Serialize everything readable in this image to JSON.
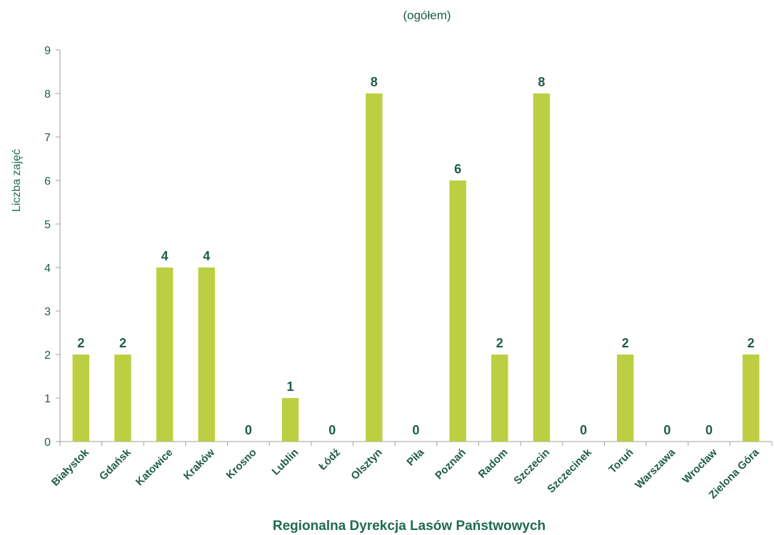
{
  "chart_data": {
    "type": "bar",
    "subtitle": "(ogółem)",
    "xlabel": "Regionalna Dyrekcja Lasów Państwowych",
    "ylabel": "Liczba zajęć",
    "categories": [
      "Białystok",
      "Gdańsk",
      "Katowice",
      "Kraków",
      "Krosno",
      "Lublin",
      "Łódź",
      "Olsztyn",
      "Piła",
      "Poznań",
      "Radom",
      "Szczecin",
      "Szczecinek",
      "Toruń",
      "Warszawa",
      "Wrocław",
      "Zielona Góra"
    ],
    "values": [
      2,
      2,
      4,
      4,
      0,
      1,
      0,
      8,
      0,
      6,
      2,
      8,
      0,
      2,
      0,
      0,
      2
    ],
    "ylim": [
      0,
      9
    ],
    "yticks": [
      0,
      1,
      2,
      3,
      4,
      5,
      6,
      7,
      8,
      9
    ],
    "data_labels": true,
    "grid": false,
    "colors": {
      "bar": "#bccf43",
      "text": "#1f5c4a",
      "axis": "#9e9e9e"
    }
  }
}
